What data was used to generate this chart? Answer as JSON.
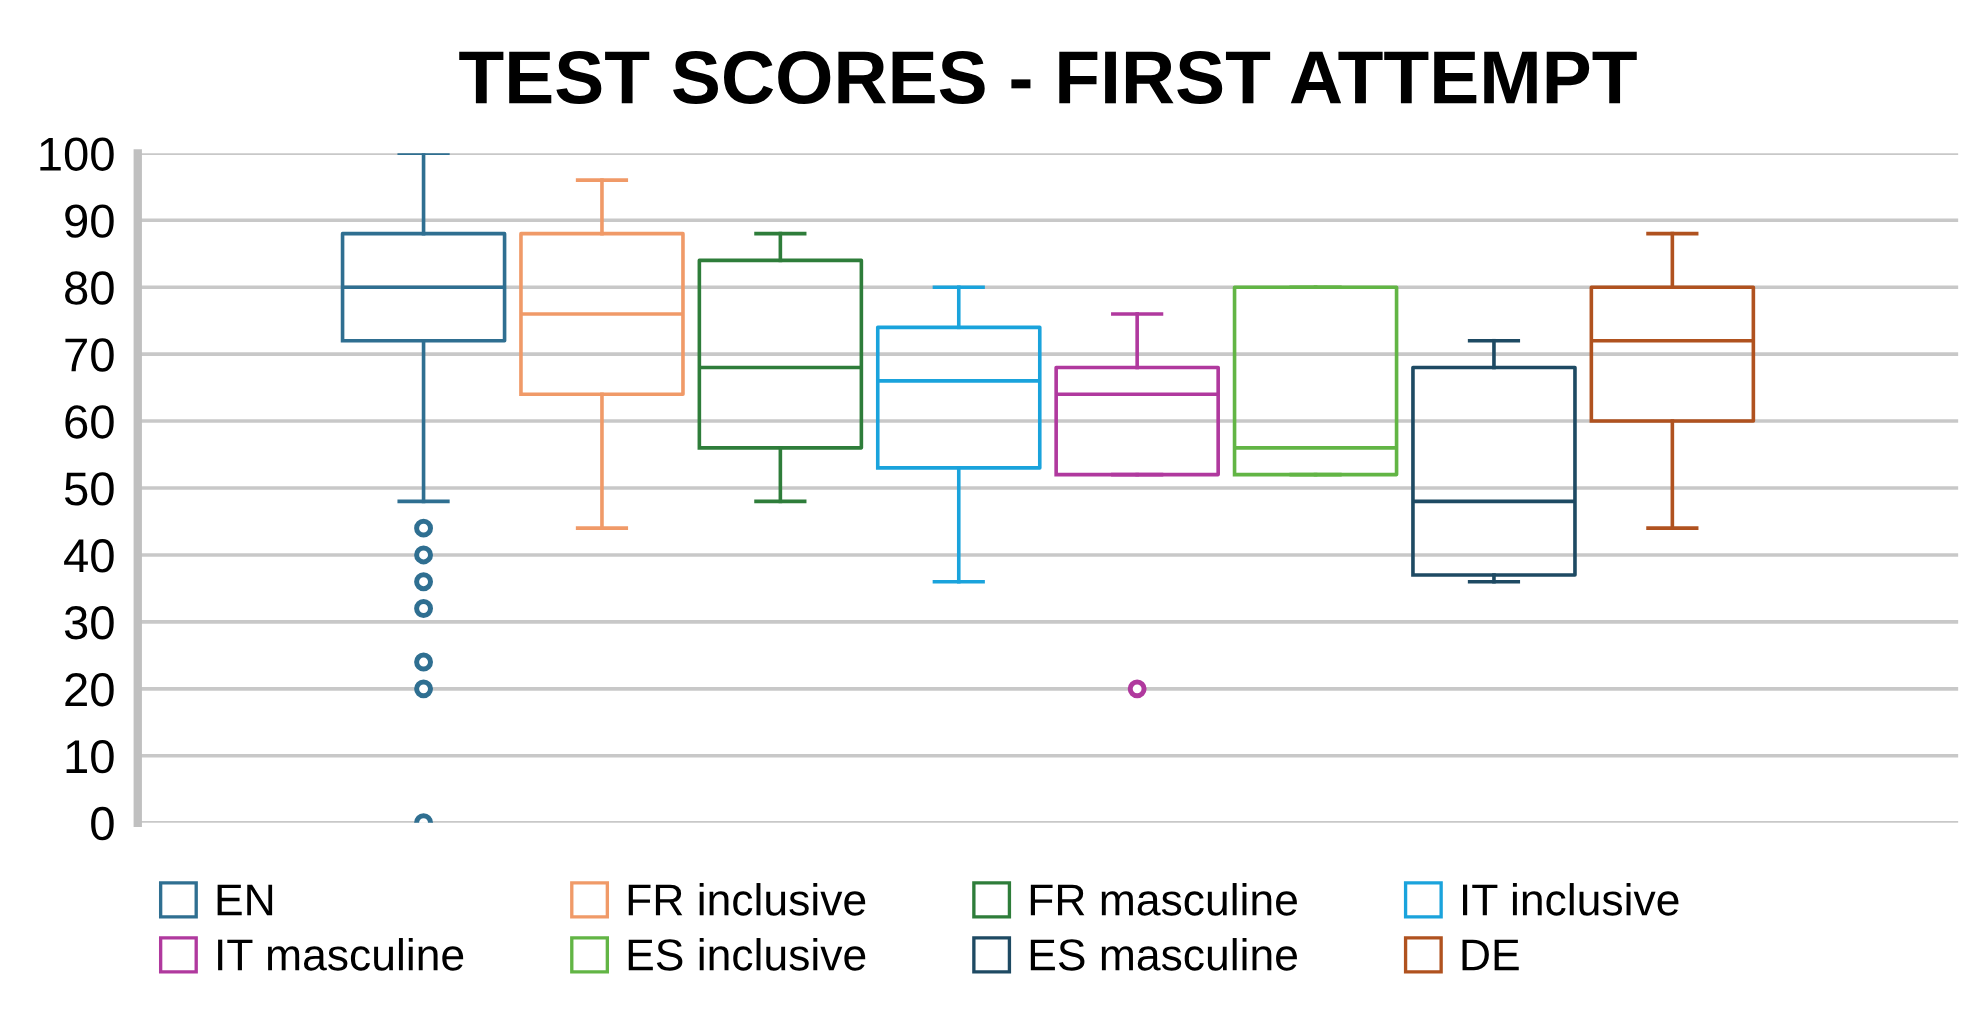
{
  "chart_data": {
    "type": "box",
    "title": "TEST SCORES - FIRST ATTEMPT",
    "categories": [
      null
    ],
    "ylim": [
      0,
      100
    ],
    "yticks": [
      0,
      10,
      20,
      30,
      40,
      50,
      60,
      70,
      80,
      90,
      100
    ],
    "grid": "y",
    "legend": "bottom",
    "series": [
      {
        "name": "EN",
        "color": "#2f6f91",
        "boxes": [
          {
            "low": 48,
            "q1": 72,
            "median": 80,
            "q3": 88,
            "high": 100,
            "outliers": [
              44,
              40,
              36,
              32,
              24,
              20,
              0
            ]
          }
        ]
      },
      {
        "name": "FR inclusive",
        "color": "#f09a68",
        "boxes": [
          {
            "low": 44,
            "q1": 64,
            "median": 76,
            "q3": 88,
            "high": 96
          }
        ]
      },
      {
        "name": "FR masculine",
        "color": "#2e7d3a",
        "boxes": [
          {
            "low": 48,
            "q1": 56,
            "median": 68,
            "q3": 84,
            "high": 88
          }
        ]
      },
      {
        "name": "IT inclusive",
        "color": "#1aa3dc",
        "boxes": [
          {
            "low": 36,
            "q1": 53,
            "median": 66,
            "q3": 74,
            "high": 80
          }
        ]
      },
      {
        "name": "IT masculine",
        "color": "#b0399e",
        "boxes": [
          {
            "low": 52,
            "q1": 52,
            "median": 64,
            "q3": 68,
            "high": 76,
            "outliers": [
              20
            ]
          }
        ]
      },
      {
        "name": "ES inclusive",
        "color": "#62b545",
        "boxes": [
          {
            "low": 52,
            "q1": 52,
            "median": 56,
            "q3": 80,
            "high": 80
          }
        ]
      },
      {
        "name": "ES masculine",
        "color": "#1e4a63",
        "boxes": [
          {
            "low": 36,
            "q1": 37,
            "median": 48,
            "q3": 68,
            "high": 72
          }
        ]
      },
      {
        "name": "DE",
        "color": "#b0521f",
        "boxes": [
          {
            "low": 44,
            "q1": 60,
            "median": 72,
            "q3": 80,
            "high": 88
          }
        ]
      }
    ]
  }
}
